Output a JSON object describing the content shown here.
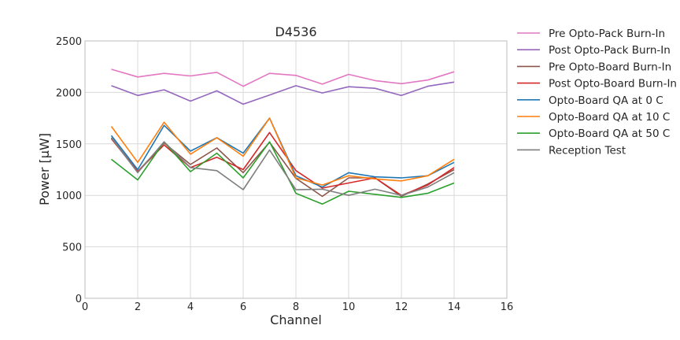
{
  "chart_data": {
    "type": "line",
    "title": "D4536",
    "xlabel": "Channel",
    "ylabel": "Power [μW]",
    "xlim": [
      0,
      16
    ],
    "ylim": [
      0,
      2500
    ],
    "xticks": [
      0,
      2,
      4,
      6,
      8,
      10,
      12,
      14,
      16
    ],
    "yticks": [
      0,
      500,
      1000,
      1500,
      2000,
      2500
    ],
    "grid": true,
    "legend_position": "outside-right",
    "x": [
      1,
      2,
      3,
      4,
      5,
      6,
      7,
      8,
      9,
      10,
      11,
      12,
      13,
      14
    ],
    "series": [
      {
        "name": "Pre Opto-Pack Burn-In",
        "color": "#e377c2",
        "values": [
          2225,
          2150,
          2185,
          2160,
          2195,
          2060,
          2185,
          2165,
          2080,
          2175,
          2115,
          2085,
          2120,
          2200
        ]
      },
      {
        "name": "Post Opto-Pack Burn-In",
        "color": "#9467bd",
        "values": [
          2065,
          1970,
          2025,
          1915,
          2015,
          1885,
          1975,
          2065,
          1995,
          2055,
          2040,
          1970,
          2060,
          2100
        ]
      },
      {
        "name": "Pre Opto-Board Burn-In",
        "color": "#8c564b",
        "values": [
          1560,
          1230,
          1510,
          1300,
          1460,
          1220,
          1515,
          1165,
          990,
          1170,
          1170,
          990,
          1110,
          1250
        ]
      },
      {
        "name": "Post Opto-Board Burn-In",
        "color": "#d62728",
        "values": [
          1550,
          1230,
          1490,
          1270,
          1370,
          1250,
          1610,
          1240,
          1070,
          1120,
          1170,
          1000,
          1100,
          1270
        ]
      },
      {
        "name": "Opto-Board QA at 0 C",
        "color": "#1f77b4",
        "values": [
          1580,
          1250,
          1680,
          1430,
          1560,
          1410,
          1750,
          1190,
          1080,
          1220,
          1180,
          1170,
          1190,
          1320
        ]
      },
      {
        "name": "Opto-Board QA at 10 C",
        "color": "#ff7f0e",
        "values": [
          1670,
          1320,
          1710,
          1400,
          1560,
          1380,
          1750,
          1170,
          1100,
          1190,
          1160,
          1140,
          1190,
          1350
        ]
      },
      {
        "name": "Opto-Board QA at 50 C",
        "color": "#2ca02c",
        "values": [
          1350,
          1150,
          1520,
          1230,
          1410,
          1170,
          1520,
          1020,
          915,
          1040,
          1010,
          980,
          1020,
          1120
        ]
      },
      {
        "name": "Reception Test",
        "color": "#7f7f7f",
        "values": [
          1560,
          1220,
          1520,
          1270,
          1240,
          1055,
          1440,
          1055,
          1060,
          1000,
          1060,
          1000,
          1080,
          1220
        ]
      }
    ]
  }
}
